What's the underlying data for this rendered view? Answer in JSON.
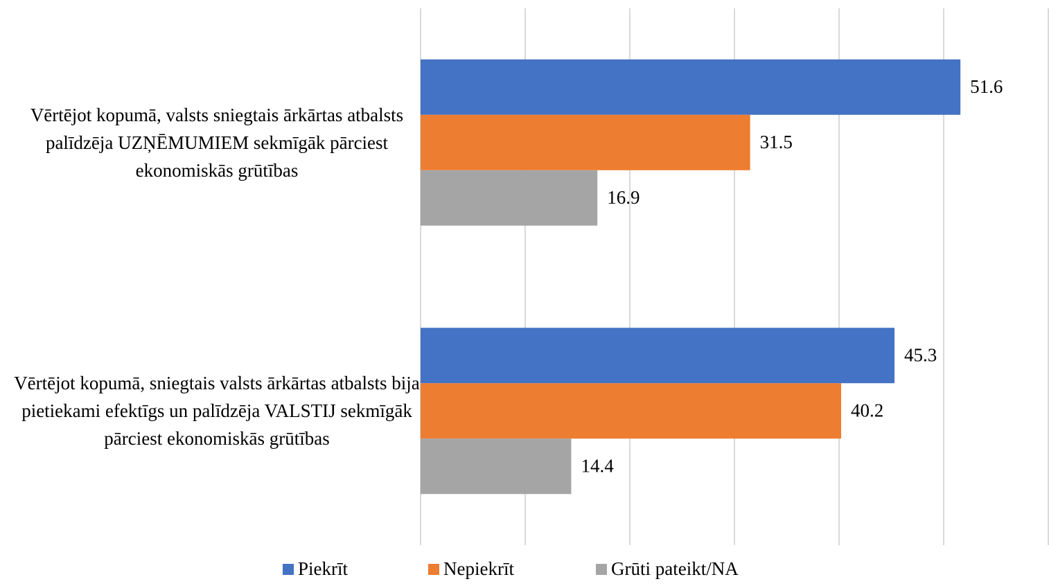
{
  "chart_data": {
    "type": "bar",
    "orientation": "horizontal",
    "categories": [
      "Vērtējot kopumā, valsts sniegtais ārkārtas atbalsts palīdzēja UZŅĒMUMIEM sekmīgāk pārciest ekonomiskās grūtības",
      "Vērtējot kopumā, sniegtais valsts ārkārtas atbalsts bija pietiekami efektīgs un palīdzēja VALSTIJ sekmīgāk pārciest ekonomiskās grūtības"
    ],
    "series": [
      {
        "name": "Piekrīt",
        "color": "#4472c4",
        "values": [
          51.6,
          45.3
        ]
      },
      {
        "name": "Nepiekrīt",
        "color": "#ed7d31",
        "values": [
          31.5,
          40.2
        ]
      },
      {
        "name": "Grūti pateikt/NA",
        "color": "#a5a5a5",
        "values": [
          16.9,
          14.4
        ]
      }
    ],
    "xlim": [
      0,
      60
    ],
    "xticks": [
      0,
      10,
      20,
      30,
      40,
      50,
      60
    ],
    "grid": true,
    "legend": "bottom"
  }
}
